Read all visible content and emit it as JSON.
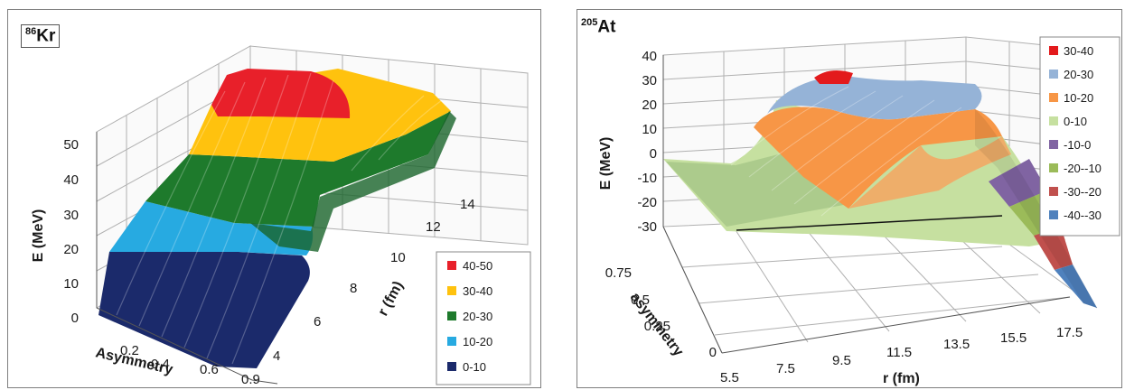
{
  "chart_data": [
    {
      "type": "surface3d",
      "nucleus": {
        "mass": "86",
        "symbol": "Kr"
      },
      "ylabel": "E (MeV)",
      "xlabel": "Asymmetry",
      "zlabel": "r (fm)",
      "e_ticks": [
        "0",
        "10",
        "20",
        "30",
        "40",
        "50"
      ],
      "asym_ticks": [
        "0.2",
        "0.4",
        "0.6",
        "0.9"
      ],
      "r_ticks": [
        "4",
        "6",
        "8",
        "10",
        "12",
        "14"
      ],
      "legend_position": "bottom-right",
      "legend": [
        {
          "label": "40-50",
          "color": "#e8202a"
        },
        {
          "label": "30-40",
          "color": "#ffc20e"
        },
        {
          "label": "20-30",
          "color": "#1e7a2c"
        },
        {
          "label": "10-20",
          "color": "#27aae1"
        },
        {
          "label": "0-10",
          "color": "#1b2a6b"
        }
      ]
    },
    {
      "type": "surface3d",
      "nucleus": {
        "mass": "205",
        "symbol": "At"
      },
      "ylabel": "E (MeV)",
      "xlabel": "r (fm)",
      "zlabel": "asymmetry",
      "e_ticks": [
        "40",
        "30",
        "20",
        "10",
        "0",
        "-10",
        "-20",
        "-30"
      ],
      "asym_ticks": [
        "0.75",
        "0.5",
        "0.25",
        "0"
      ],
      "r_ticks": [
        "5.5",
        "7.5",
        "9.5",
        "11.5",
        "13.5",
        "15.5",
        "17.5"
      ],
      "legend_position": "top-right",
      "legend": [
        {
          "label": "30-40",
          "color": "#e31a1c"
        },
        {
          "label": "20-30",
          "color": "#95b3d7"
        },
        {
          "label": "10-20",
          "color": "#f79646"
        },
        {
          "label": "0-10",
          "color": "#c6e0a0"
        },
        {
          "label": "-10-0",
          "color": "#8064a2"
        },
        {
          "label": "-20--10",
          "color": "#9bbb59"
        },
        {
          "label": "-30--20",
          "color": "#c0504d"
        },
        {
          "label": "-40--30",
          "color": "#4f81bd"
        }
      ]
    }
  ]
}
